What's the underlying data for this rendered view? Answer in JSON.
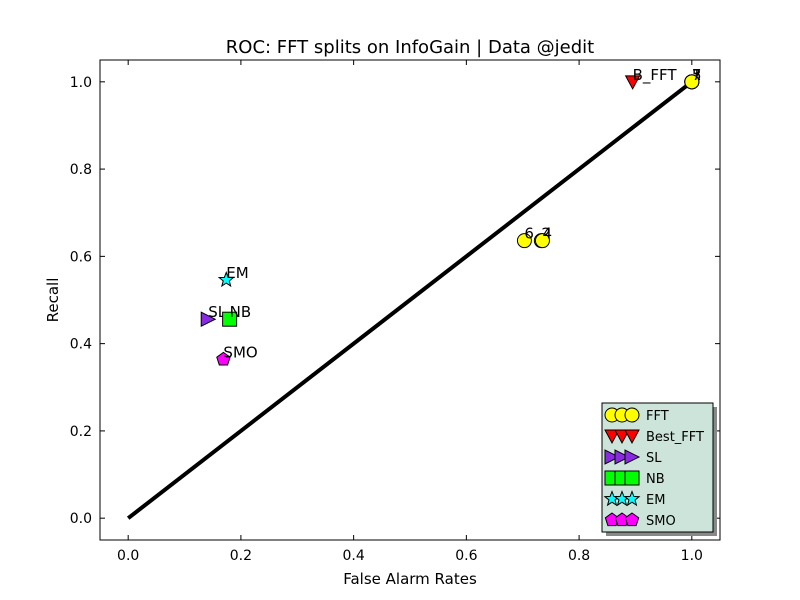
{
  "chart_data": {
    "type": "scatter",
    "title": "ROC: FFT splits on InfoGain  |  Data @jedit",
    "xlabel": "False Alarm Rates",
    "ylabel": "Recall",
    "xlim": [
      -0.05,
      1.05
    ],
    "ylim": [
      -0.05,
      1.05
    ],
    "xticks": [
      0.0,
      0.2,
      0.4,
      0.6,
      0.8,
      1.0
    ],
    "yticks": [
      0.0,
      0.2,
      0.4,
      0.6,
      0.8,
      1.0
    ],
    "xtick_labels": [
      "0.0",
      "0.2",
      "0.4",
      "0.6",
      "0.8",
      "1.0"
    ],
    "ytick_labels": [
      "0.0",
      "0.2",
      "0.4",
      "0.6",
      "0.8",
      "1.0"
    ],
    "grid": false,
    "legend_position": "lower-right",
    "diagonal": {
      "x": [
        0.0,
        1.0
      ],
      "y": [
        0.0,
        1.0
      ],
      "color": "#000000"
    },
    "series": [
      {
        "name": "FFT",
        "marker": "circle",
        "color": "#ffff00",
        "points": [
          {
            "x": 0.703,
            "y": 0.636,
            "label": "6"
          },
          {
            "x": 0.733,
            "y": 0.636,
            "label": "2"
          },
          {
            "x": 0.735,
            "y": 0.636,
            "label": "4"
          },
          {
            "x": 1.0,
            "y": 1.0,
            "label": "5"
          },
          {
            "x": 1.0,
            "y": 1.0,
            "label": "1"
          },
          {
            "x": 1.0,
            "y": 1.0,
            "label": "3"
          },
          {
            "x": 1.0,
            "y": 1.0,
            "label": "7"
          }
        ]
      },
      {
        "name": "Best_FFT",
        "marker": "triangle-down",
        "color": "#ff0000",
        "points": [
          {
            "x": 0.895,
            "y": 1.0,
            "label": "B_FFT"
          }
        ]
      },
      {
        "name": "SL",
        "marker": "triangle-right",
        "color": "#8a2be2",
        "points": [
          {
            "x": 0.142,
            "y": 0.456,
            "label": "SL"
          }
        ]
      },
      {
        "name": "NB",
        "marker": "square",
        "color": "#00ff00",
        "points": [
          {
            "x": 0.18,
            "y": 0.456,
            "label": "NB"
          }
        ]
      },
      {
        "name": "EM",
        "marker": "star",
        "color": "#00ffff",
        "points": [
          {
            "x": 0.174,
            "y": 0.546,
            "label": "EM"
          }
        ]
      },
      {
        "name": "SMO",
        "marker": "pentagon",
        "color": "#ff00ff",
        "points": [
          {
            "x": 0.169,
            "y": 0.364,
            "label": "SMO"
          }
        ]
      }
    ],
    "legend_bg": "#cce4da"
  }
}
